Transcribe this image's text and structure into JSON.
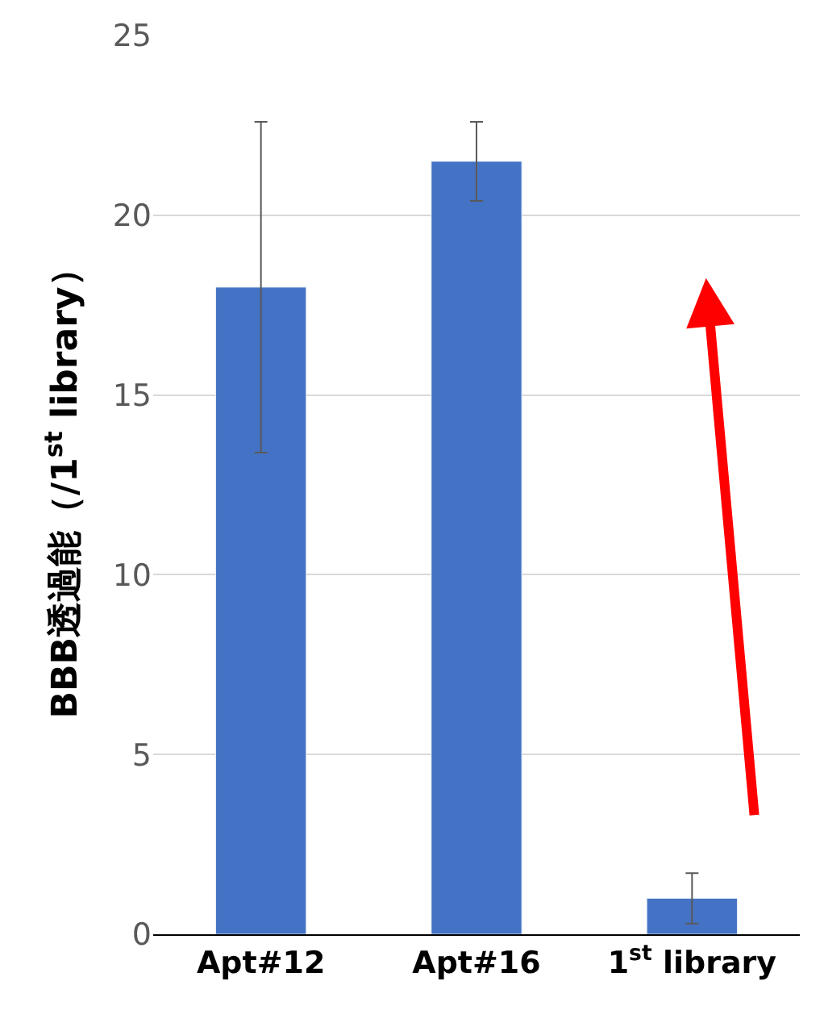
{
  "chart_data": {
    "type": "bar",
    "categories": [
      "Apt#12",
      "Apt#16",
      "1$^{st}$ library"
    ],
    "values": [
      18.0,
      21.5,
      1.0
    ],
    "errors": [
      4.6,
      1.1,
      0.7
    ],
    "color": "#4472c4",
    "ylabel": "BBB透過能（/1$^{st}$ library）",
    "ylim": [
      0,
      25
    ],
    "yticks": [
      0,
      5,
      10,
      15,
      20,
      25
    ],
    "grid": "y"
  }
}
